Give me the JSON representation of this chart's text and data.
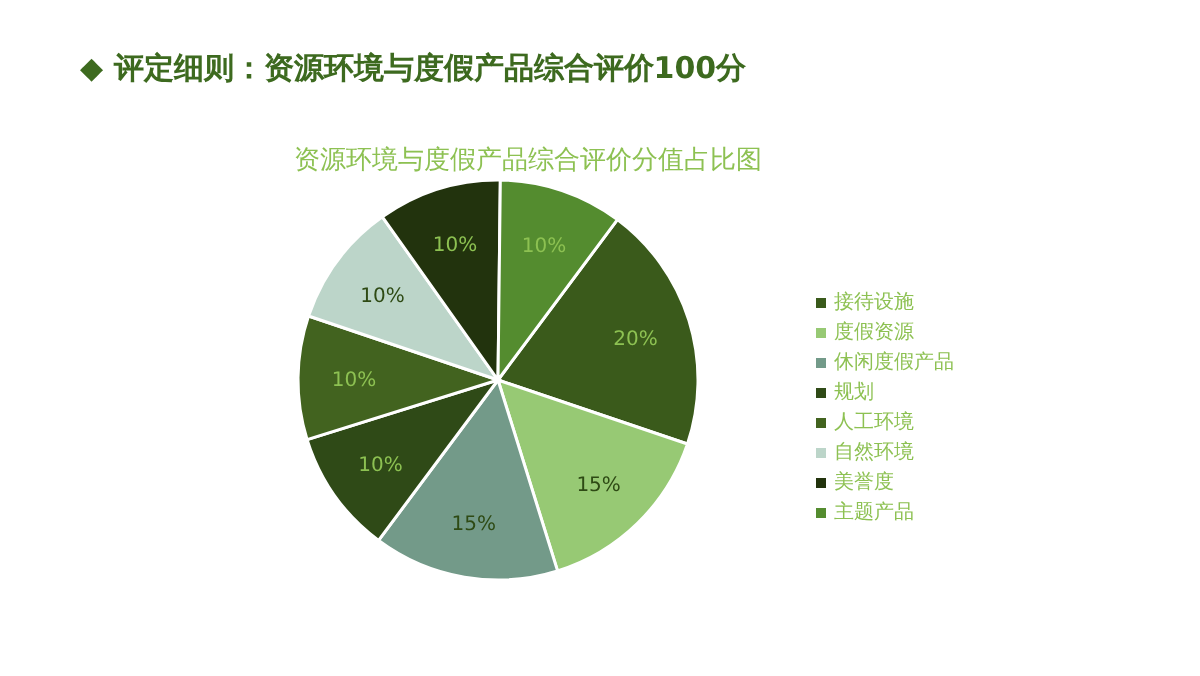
{
  "chart_data": {
    "type": "pie",
    "title": "◆ 评定细则：资源环境与度假产品综合评价100分",
    "subtitle": "资源环境与度假产品综合评价分值占比图",
    "categories": [
      "接待设施",
      "度假资源",
      "休闲度假产品",
      "规划",
      "人工环境",
      "自然环境",
      "美誉度",
      "主题产品"
    ],
    "values": [
      20,
      15,
      15,
      10,
      10,
      10,
      10,
      10
    ],
    "colors": [
      "#3a5a1b",
      "#97c974",
      "#739a89",
      "#2f4a17",
      "#42631f",
      "#bcd5c9",
      "#22330d",
      "#548c2f"
    ],
    "value_labels": [
      "20%",
      "15%",
      "15%",
      "10%",
      "10%",
      "10%",
      "10%",
      "10%"
    ],
    "legend": "right"
  }
}
